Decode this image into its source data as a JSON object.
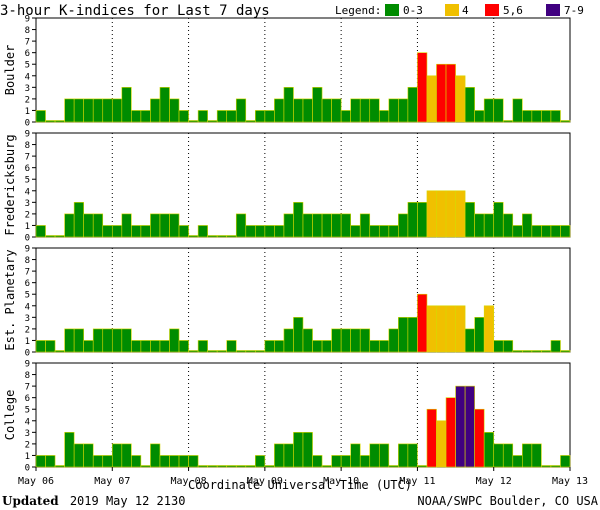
{
  "title": "3-hour K-indices for Last 7 days",
  "legend": {
    "label": "Legend:",
    "items": [
      {
        "label": "0-3",
        "color": "#008c00"
      },
      {
        "label": "4",
        "color": "#f0c000"
      },
      {
        "label": "5,6",
        "color": "#ff0000"
      },
      {
        "label": "7-9",
        "color": "#400080"
      }
    ]
  },
  "footer": {
    "updated_label": "Updated",
    "updated_value": "2019 May 12 2130",
    "credit": "NOAA/SWPC Boulder, CO USA"
  },
  "chart_data": [
    {
      "type": "bar",
      "title": "Boulder",
      "ylabel": "Boulder",
      "ylim": [
        0,
        9
      ],
      "yticks": [
        "0",
        "1",
        "2",
        "3",
        "4",
        "5",
        "6",
        "7",
        "8",
        "9"
      ],
      "xlabel": "Coordinate Universal Time (UTC)",
      "xticks": [
        "May 06",
        "May 07",
        "May 08",
        "May 09",
        "May 10",
        "May 11",
        "May 12",
        "May 13"
      ],
      "values": [
        1,
        0,
        0,
        2,
        2,
        2,
        2,
        2,
        2,
        3,
        1,
        1,
        2,
        3,
        2,
        1,
        0,
        1,
        0,
        1,
        1,
        2,
        0,
        1,
        1,
        2,
        3,
        2,
        2,
        3,
        2,
        2,
        1,
        2,
        2,
        2,
        1,
        2,
        2,
        3,
        6,
        4,
        5,
        5,
        4,
        3,
        1,
        2,
        2,
        0,
        2,
        1,
        1,
        1,
        1,
        0
      ]
    },
    {
      "type": "bar",
      "title": "Fredericksburg",
      "ylabel": "Fredericksburg",
      "ylim": [
        0,
        9
      ],
      "yticks": [
        "0",
        "1",
        "2",
        "3",
        "4",
        "5",
        "6",
        "7",
        "8",
        "9"
      ],
      "xlabel": "Coordinate Universal Time (UTC)",
      "xticks": [
        "May 06",
        "May 07",
        "May 08",
        "May 09",
        "May 10",
        "May 11",
        "May 12",
        "May 13"
      ],
      "values": [
        1,
        0,
        0,
        2,
        3,
        2,
        2,
        1,
        1,
        2,
        1,
        1,
        2,
        2,
        2,
        1,
        0,
        1,
        0,
        0,
        0,
        2,
        1,
        1,
        1,
        1,
        2,
        3,
        2,
        2,
        2,
        2,
        2,
        1,
        2,
        1,
        1,
        1,
        2,
        3,
        3,
        4,
        4,
        4,
        4,
        3,
        2,
        2,
        3,
        2,
        1,
        2,
        1,
        1,
        1,
        1,
        0
      ]
    },
    {
      "type": "bar",
      "title": "Est. Planetary",
      "ylabel": "Est. Planetary",
      "ylim": [
        0,
        9
      ],
      "yticks": [
        "0",
        "1",
        "2",
        "3",
        "4",
        "5",
        "6",
        "7",
        "8",
        "9"
      ],
      "xlabel": "Coordinate Universal Time (UTC)",
      "xticks": [
        "May 06",
        "May 07",
        "May 08",
        "May 09",
        "May 10",
        "May 11",
        "May 12",
        "May 13"
      ],
      "values": [
        1,
        1,
        0,
        2,
        2,
        1,
        2,
        2,
        2,
        2,
        1,
        1,
        1,
        1,
        2,
        1,
        0,
        1,
        0,
        0,
        1,
        0,
        0,
        0,
        1,
        1,
        2,
        3,
        2,
        1,
        1,
        2,
        2,
        2,
        2,
        1,
        1,
        2,
        3,
        3,
        5,
        4,
        4,
        4,
        4,
        2,
        3,
        4,
        1,
        1,
        0,
        0,
        0,
        0,
        1,
        0
      ]
    },
    {
      "type": "bar",
      "title": "College",
      "ylabel": "College",
      "ylim": [
        0,
        9
      ],
      "yticks": [
        "0",
        "1",
        "2",
        "3",
        "4",
        "5",
        "6",
        "7",
        "8",
        "9"
      ],
      "xlabel": "Coordinate Universal Time (UTC)",
      "xticks": [
        "May 06",
        "May 07",
        "May 08",
        "May 09",
        "May 10",
        "May 11",
        "May 12",
        "May 13"
      ],
      "values": [
        1,
        1,
        0,
        3,
        2,
        2,
        1,
        1,
        2,
        2,
        1,
        0,
        2,
        1,
        1,
        1,
        1,
        0,
        0,
        0,
        0,
        0,
        0,
        1,
        0,
        2,
        2,
        3,
        3,
        1,
        0,
        1,
        1,
        2,
        1,
        2,
        2,
        0,
        2,
        2,
        0,
        5,
        4,
        6,
        7,
        7,
        5,
        3,
        2,
        2,
        1,
        2,
        2,
        0,
        0,
        1,
        0
      ]
    }
  ]
}
